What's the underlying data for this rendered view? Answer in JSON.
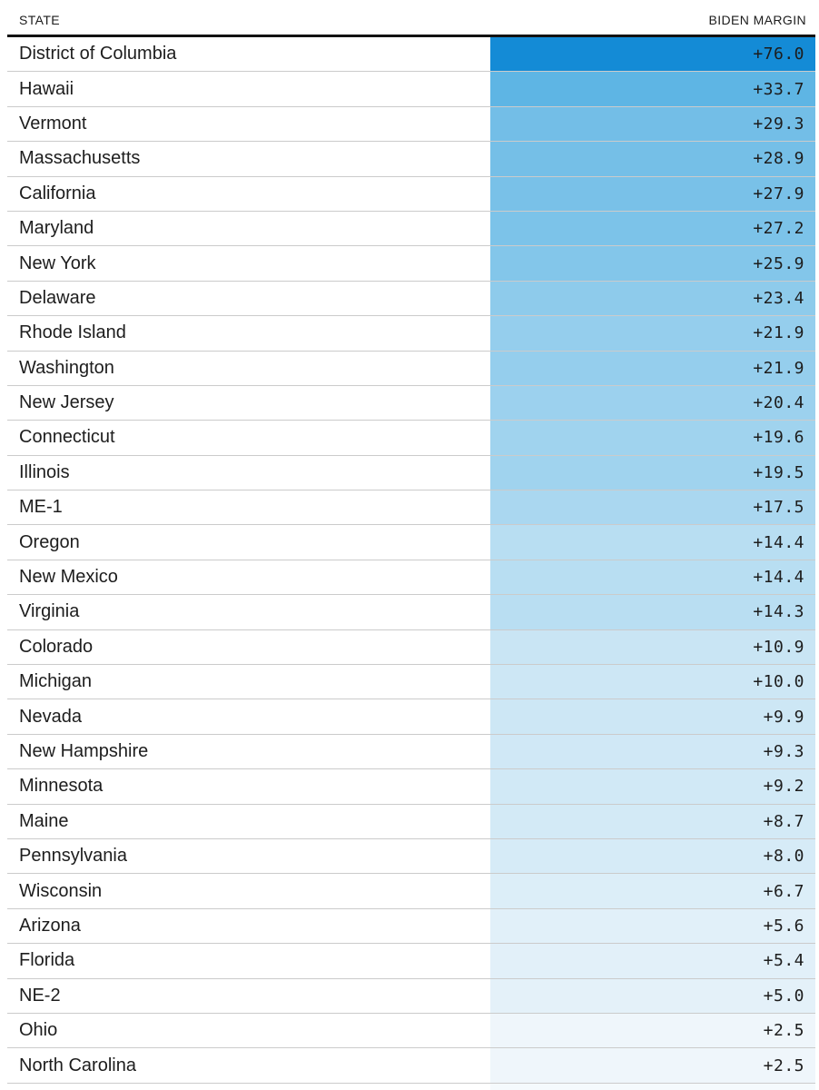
{
  "colors": {
    "background": "#ffffff",
    "header_rule": "#121212",
    "row_divider": "#cbcbcb",
    "text": "#1d1d1d",
    "max_blue": "#148bd6"
  },
  "chart_data": {
    "type": "table",
    "columns": [
      "STATE",
      "BIDEN MARGIN"
    ],
    "rows": [
      {
        "state": "District of Columbia",
        "margin_label": "+76.0",
        "margin_value": 76.0,
        "cell_color": "#148bd6"
      },
      {
        "state": "Hawaii",
        "margin_label": "+33.7",
        "margin_value": 33.7,
        "cell_color": "#5eb5e4"
      },
      {
        "state": "Vermont",
        "margin_label": "+29.3",
        "margin_value": 29.3,
        "cell_color": "#73bee7"
      },
      {
        "state": "Massachusetts",
        "margin_label": "+28.9",
        "margin_value": 28.9,
        "cell_color": "#75bfe7"
      },
      {
        "state": "California",
        "margin_label": "+27.9",
        "margin_value": 27.9,
        "cell_color": "#79c1e8"
      },
      {
        "state": "Maryland",
        "margin_label": "+27.2",
        "margin_value": 27.2,
        "cell_color": "#7cc3e9"
      },
      {
        "state": "New York",
        "margin_label": "+25.9",
        "margin_value": 25.9,
        "cell_color": "#83c6ea"
      },
      {
        "state": "Delaware",
        "margin_label": "+23.4",
        "margin_value": 23.4,
        "cell_color": "#8ecbeb"
      },
      {
        "state": "Rhode Island",
        "margin_label": "+21.9",
        "margin_value": 21.9,
        "cell_color": "#95ceed"
      },
      {
        "state": "Washington",
        "margin_label": "+21.9",
        "margin_value": 21.9,
        "cell_color": "#95ceed"
      },
      {
        "state": "New Jersey",
        "margin_label": "+20.4",
        "margin_value": 20.4,
        "cell_color": "#9cd1ee"
      },
      {
        "state": "Connecticut",
        "margin_label": "+19.6",
        "margin_value": 19.6,
        "cell_color": "#a0d3ee"
      },
      {
        "state": "Illinois",
        "margin_label": "+19.5",
        "margin_value": 19.5,
        "cell_color": "#a0d3ee"
      },
      {
        "state": "ME-1",
        "margin_label": "+17.5",
        "margin_value": 17.5,
        "cell_color": "#aad7f0"
      },
      {
        "state": "Oregon",
        "margin_label": "+14.4",
        "margin_value": 14.4,
        "cell_color": "#b8def2"
      },
      {
        "state": "New Mexico",
        "margin_label": "+14.4",
        "margin_value": 14.4,
        "cell_color": "#b8def2"
      },
      {
        "state": "Virginia",
        "margin_label": "+14.3",
        "margin_value": 14.3,
        "cell_color": "#b9def2"
      },
      {
        "state": "Colorado",
        "margin_label": "+10.9",
        "margin_value": 10.9,
        "cell_color": "#c9e5f4"
      },
      {
        "state": "Michigan",
        "margin_label": "+10.0",
        "margin_value": 10.0,
        "cell_color": "#cde7f5"
      },
      {
        "state": "Nevada",
        "margin_label": "+9.9",
        "margin_value": 9.9,
        "cell_color": "#cde7f5"
      },
      {
        "state": "New Hampshire",
        "margin_label": "+9.3",
        "margin_value": 9.3,
        "cell_color": "#d0e8f6"
      },
      {
        "state": "Minnesota",
        "margin_label": "+9.2",
        "margin_value": 9.2,
        "cell_color": "#d1e9f6"
      },
      {
        "state": "Maine",
        "margin_label": "+8.7",
        "margin_value": 8.7,
        "cell_color": "#d3eaf6"
      },
      {
        "state": "Pennsylvania",
        "margin_label": "+8.0",
        "margin_value": 8.0,
        "cell_color": "#d6ebf7"
      },
      {
        "state": "Wisconsin",
        "margin_label": "+6.7",
        "margin_value": 6.7,
        "cell_color": "#dceef8"
      },
      {
        "state": "Arizona",
        "margin_label": "+5.6",
        "margin_value": 5.6,
        "cell_color": "#e1f0f9"
      },
      {
        "state": "Florida",
        "margin_label": "+5.4",
        "margin_value": 5.4,
        "cell_color": "#e2f0f9"
      },
      {
        "state": "NE-2",
        "margin_label": "+5.0",
        "margin_value": 5.0,
        "cell_color": "#e4f1f9"
      },
      {
        "state": "Ohio",
        "margin_label": "+2.5",
        "margin_value": 2.5,
        "cell_color": "#eff6fb"
      },
      {
        "state": "North Carolina",
        "margin_label": "+2.5",
        "margin_value": 2.5,
        "cell_color": "#eff6fb"
      }
    ],
    "partial_next_row": {
      "cell_color": "#f5fafd"
    }
  }
}
